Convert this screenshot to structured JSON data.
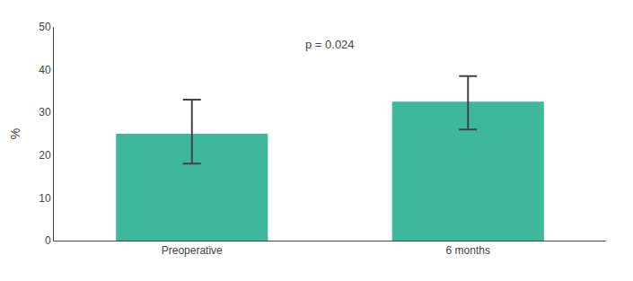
{
  "chart_data": {
    "type": "bar",
    "categories": [
      "Preoperative",
      "6 months"
    ],
    "values": [
      25.0,
      32.5
    ],
    "error_upper": [
      8.0,
      6.0
    ],
    "error_lower": [
      7.0,
      6.5
    ],
    "color": "#3db89a",
    "ylabel": "%",
    "ylim": [
      0,
      50
    ],
    "yticks": [
      0,
      10,
      20,
      30,
      40,
      50
    ],
    "annotation": "p = 0.024",
    "grid": false
  }
}
